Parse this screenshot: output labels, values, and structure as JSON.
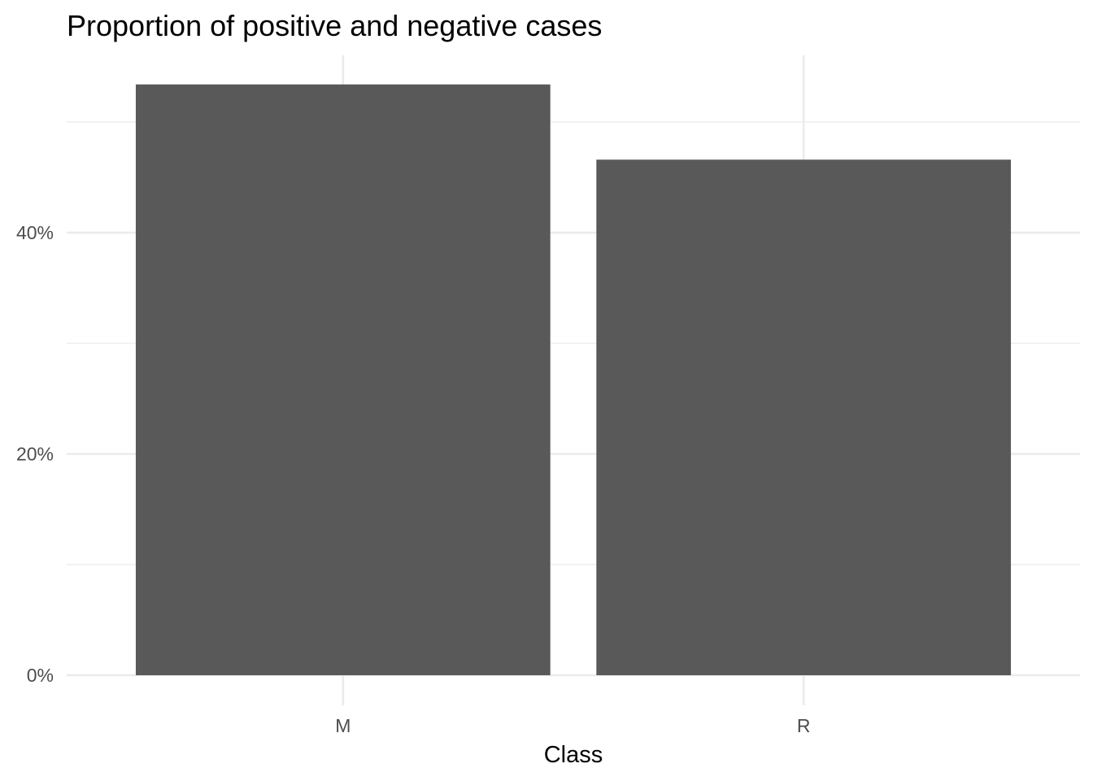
{
  "chart_data": {
    "type": "bar",
    "title": "Proportion of positive and negative cases",
    "xlabel": "Class",
    "ylabel": "",
    "categories": [
      "M",
      "R"
    ],
    "values": [
      0.534,
      0.466
    ],
    "ylim": [
      0,
      0.56
    ],
    "yticks": [
      0,
      0.2,
      0.4
    ],
    "ytick_labels": [
      "0%",
      "20%",
      "40%"
    ],
    "y_minor_ticks": [
      0.1,
      0.3,
      0.5
    ],
    "grid": true,
    "legend": "none",
    "colors": {
      "bar": "#595959",
      "grid": "#ebebeb",
      "tick_text": "#4d4d4d",
      "title_text": "#000000",
      "background": "#ffffff"
    }
  }
}
